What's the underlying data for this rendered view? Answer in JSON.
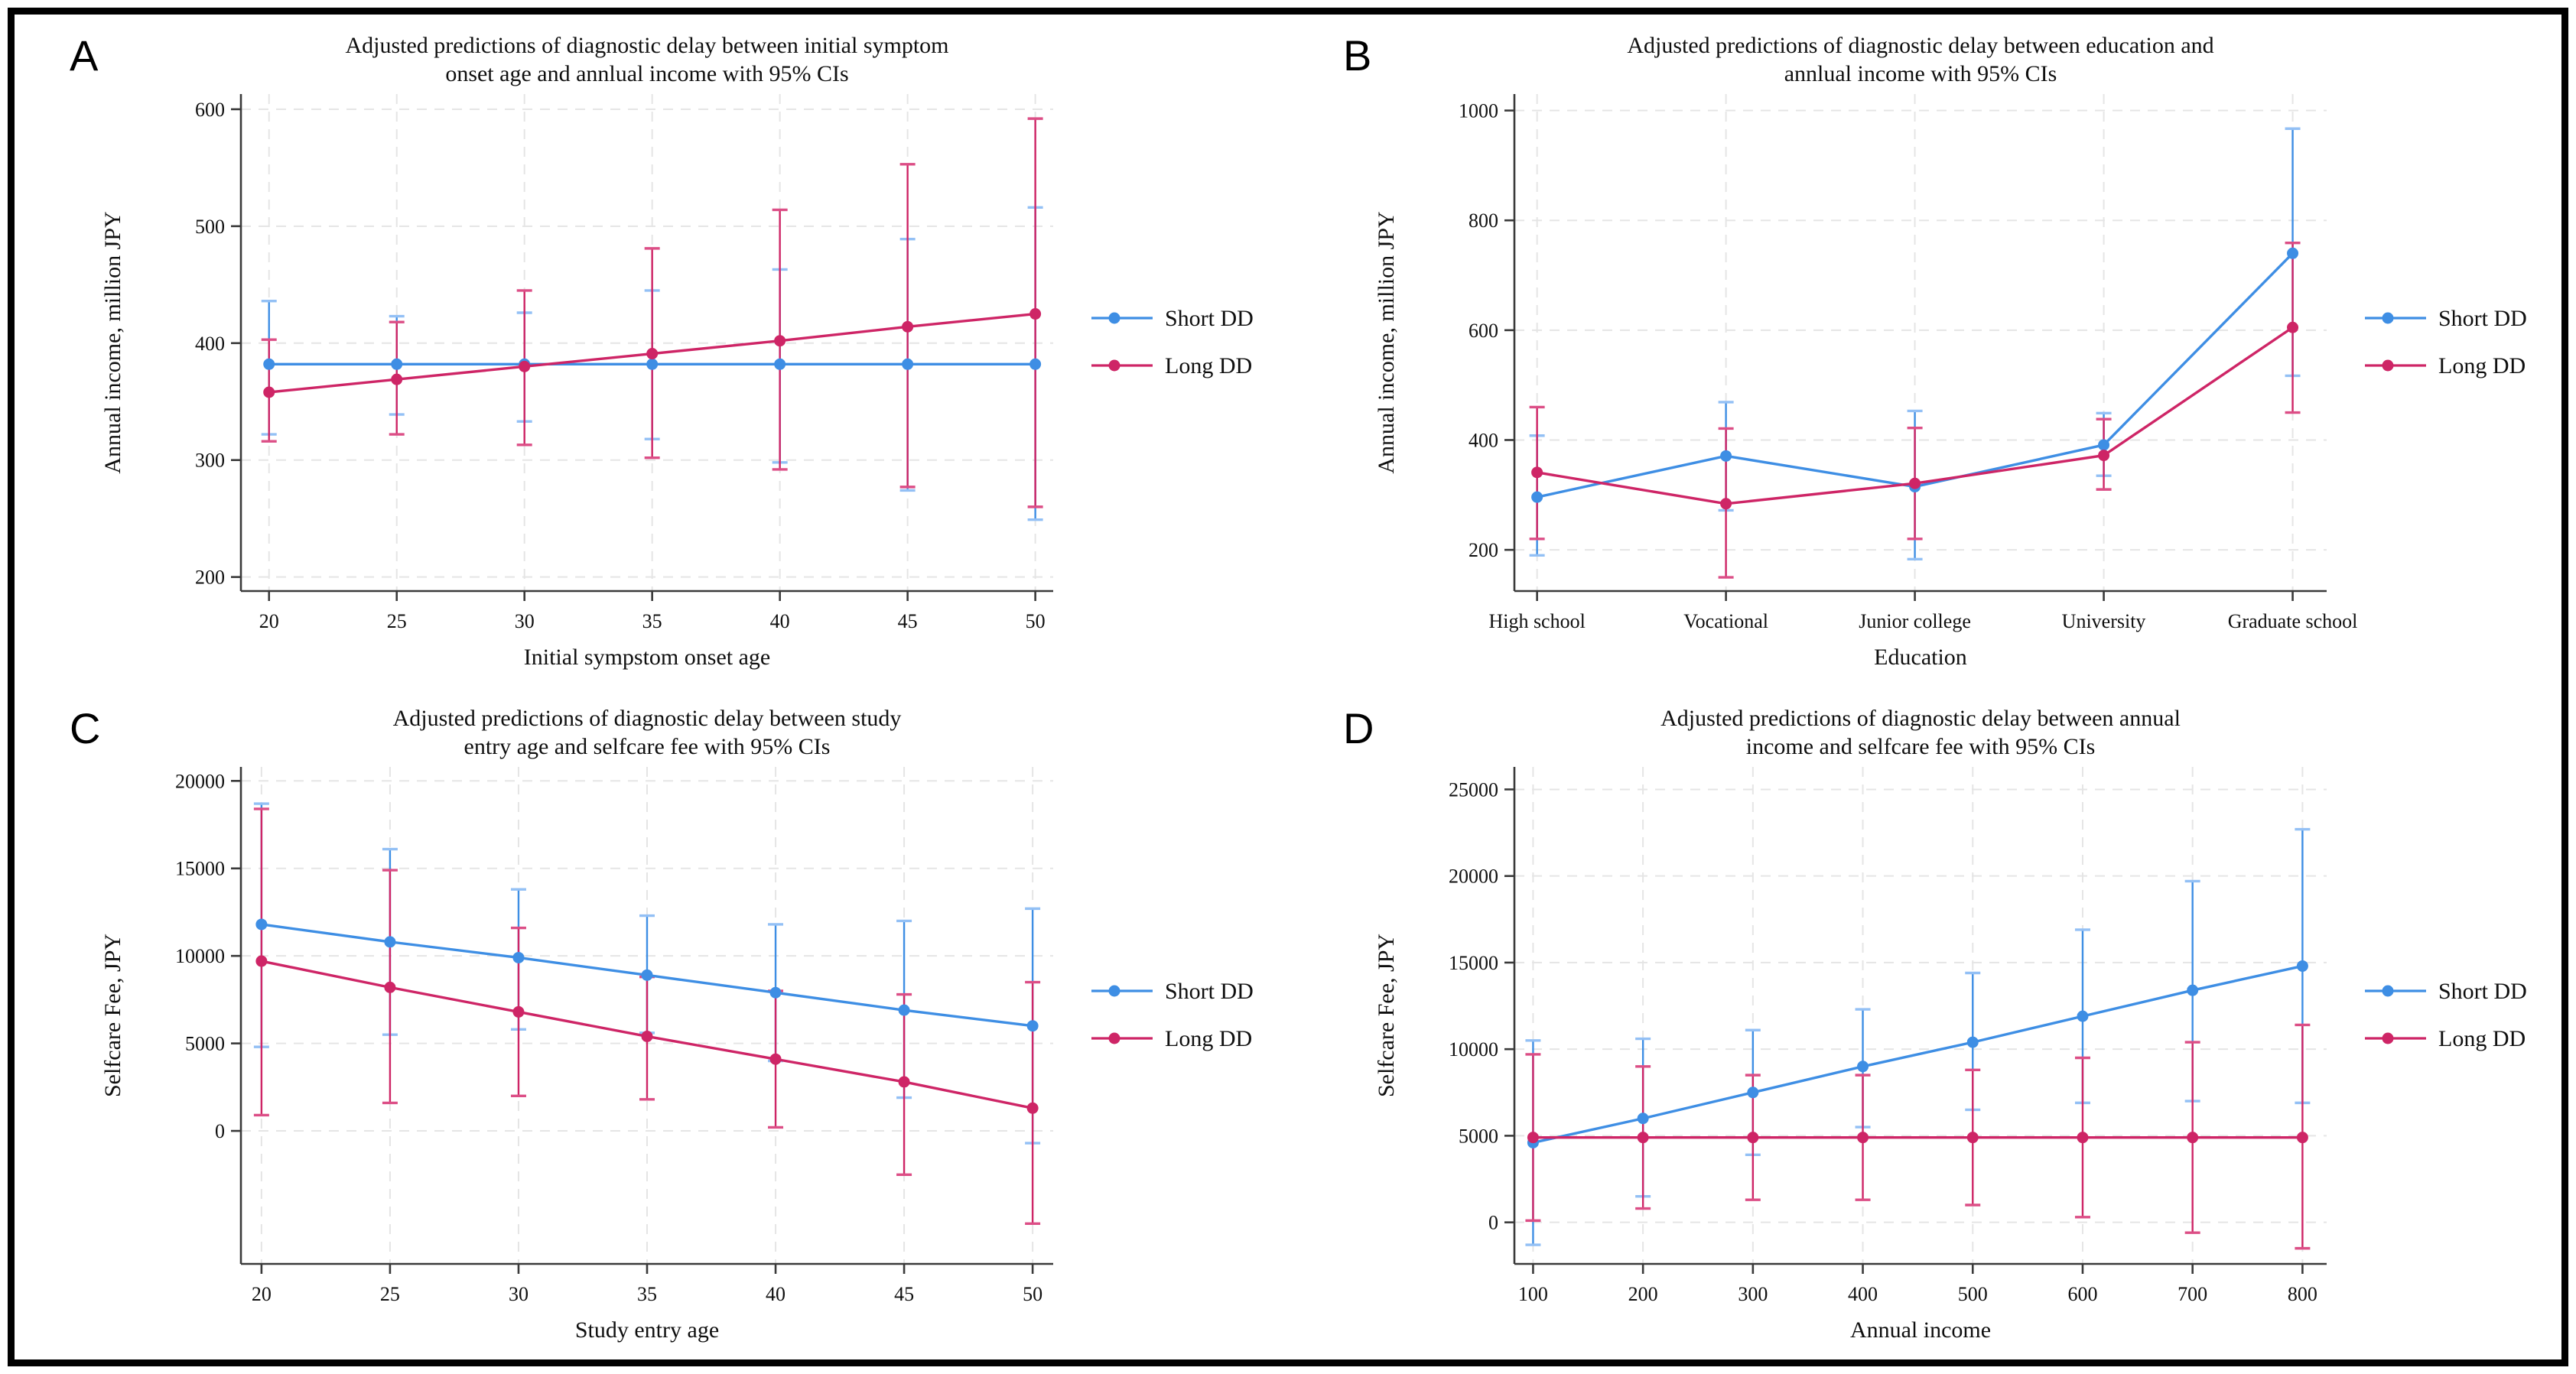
{
  "figure": {
    "background": "#ffffff",
    "border_color": "#000000"
  },
  "colors": {
    "short_dd": "#3E8EE4",
    "short_dd_cap": "#93C0F5",
    "long_dd": "#CE2566",
    "long_dd_cap": "#DC4E86",
    "axis": "#3A3A3A",
    "grid": "#E5E5E5",
    "text": "#0F0F0F"
  },
  "chart_data": [
    {
      "panel": "A",
      "type": "line",
      "title_lines": [
        "Adjusted predictions of diagnostic delay between initial symptom",
        "onset age and annlual income with 95% CIs"
      ],
      "xlabel": "Initial sympstom onset age",
      "ylabel": "Annual income, million JPY",
      "x_type": "numeric",
      "x": [
        20,
        25,
        30,
        35,
        40,
        45,
        50
      ],
      "xdomain": [
        18.9,
        50.7
      ],
      "ydomain": [
        188,
        613
      ],
      "yticks": [
        200,
        300,
        400,
        500,
        600
      ],
      "grid": true,
      "legend_position": "right",
      "series": [
        {
          "name": "Short DD",
          "color_key": "short_dd",
          "cap_key": "short_dd_cap",
          "values": [
            382,
            382,
            382,
            382,
            382,
            382,
            382
          ],
          "ci_low": [
            322,
            339,
            333,
            318,
            298,
            274,
            249
          ],
          "ci_high": [
            436,
            423,
            426,
            445,
            463,
            489,
            516
          ]
        },
        {
          "name": "Long DD",
          "color_key": "long_dd",
          "cap_key": "long_dd_cap",
          "values": [
            358,
            369,
            380,
            391,
            402,
            414,
            425
          ],
          "ci_low": [
            316,
            322,
            313,
            302,
            292,
            277,
            260
          ],
          "ci_high": [
            403,
            418,
            445,
            481,
            514,
            553,
            592
          ]
        }
      ]
    },
    {
      "panel": "B",
      "type": "line",
      "title_lines": [
        "Adjusted predictions of diagnostic delay between education and",
        "annlual income with 95% CIs"
      ],
      "xlabel": "Education",
      "ylabel": "Annual income, million JPY",
      "x_type": "category",
      "categories": [
        "High school",
        "Vocational",
        "Junior college",
        "University",
        "Graduate school"
      ],
      "xdomain": [
        -0.12,
        4.18
      ],
      "ydomain": [
        125,
        1030
      ],
      "yticks": [
        200,
        400,
        600,
        800,
        1000
      ],
      "grid": true,
      "legend_position": "right",
      "series": [
        {
          "name": "Short DD",
          "color_key": "short_dd",
          "cap_key": "short_dd_cap",
          "values": [
            296,
            371,
            315,
            391,
            740
          ],
          "ci_low": [
            190,
            272,
            183,
            335,
            517
          ],
          "ci_high": [
            408,
            469,
            453,
            449,
            967
          ]
        },
        {
          "name": "Long DD",
          "color_key": "long_dd",
          "cap_key": "long_dd_cap",
          "values": [
            341,
            284,
            321,
            372,
            605
          ],
          "ci_low": [
            220,
            150,
            220,
            310,
            450
          ],
          "ci_high": [
            460,
            421,
            422,
            438,
            759
          ]
        }
      ]
    },
    {
      "panel": "C",
      "type": "line",
      "title_lines": [
        "Adjusted predictions  of diagnostic delay between study",
        "entry age and selfcare fee with 95% CIs"
      ],
      "xlabel": "Study entry age",
      "ylabel": "Selfcare Fee, JPY",
      "x_type": "numeric",
      "x": [
        20,
        25,
        30,
        35,
        40,
        45,
        50
      ],
      "xdomain": [
        19.2,
        50.8
      ],
      "ydomain": [
        -7600,
        20800
      ],
      "yticks": [
        0,
        5000,
        10000,
        15000,
        20000
      ],
      "grid": true,
      "legend_position": "right",
      "series": [
        {
          "name": "Short DD",
          "color_key": "short_dd",
          "cap_key": "short_dd_cap",
          "values": [
            11800,
            10800,
            9900,
            8900,
            7900,
            6900,
            6000
          ],
          "ci_low": [
            4800,
            5500,
            5800,
            5600,
            4000,
            1900,
            -700
          ],
          "ci_high": [
            18700,
            16100,
            13800,
            12300,
            11800,
            12000,
            12700
          ]
        },
        {
          "name": "Long DD",
          "color_key": "long_dd",
          "cap_key": "long_dd_cap",
          "values": [
            9700,
            8200,
            6800,
            5400,
            4100,
            2800,
            1300
          ],
          "ci_low": [
            900,
            1600,
            2000,
            1800,
            200,
            -2500,
            -5300
          ],
          "ci_high": [
            18400,
            14900,
            11600,
            8800,
            8000,
            7800,
            8500
          ]
        }
      ]
    },
    {
      "panel": "D",
      "type": "line",
      "title_lines": [
        "Adjusted predictions of diagnostic delay between annual",
        "income and selfcare fee with 95% CIs"
      ],
      "xlabel": "Annual income",
      "ylabel": "Selfcare Fee, JPY",
      "x_type": "numeric",
      "x": [
        100,
        200,
        300,
        400,
        500,
        600,
        700,
        800
      ],
      "xdomain": [
        83,
        822
      ],
      "ydomain": [
        -2400,
        26300
      ],
      "yticks": [
        0,
        5000,
        10000,
        15000,
        20000,
        25000
      ],
      "grid": true,
      "legend_position": "right",
      "series": [
        {
          "name": "Short DD",
          "color_key": "short_dd",
          "cap_key": "short_dd_cap",
          "values": [
            4600,
            6000,
            7500,
            9000,
            10400,
            11900,
            13400,
            14800
          ],
          "ci_low": [
            -1300,
            1500,
            3900,
            5500,
            6500,
            6900,
            7000,
            6900
          ],
          "ci_high": [
            10500,
            10600,
            11100,
            12300,
            14400,
            16900,
            19700,
            22700
          ]
        },
        {
          "name": "Long DD",
          "color_key": "long_dd",
          "cap_key": "long_dd_cap",
          "values": [
            4900,
            4900,
            4900,
            4900,
            4900,
            4900,
            4900,
            4900
          ],
          "ci_low": [
            100,
            800,
            1300,
            1300,
            1000,
            300,
            -600,
            -1500
          ],
          "ci_high": [
            9700,
            9000,
            8500,
            8500,
            8800,
            9500,
            10400,
            11400
          ]
        }
      ]
    }
  ]
}
